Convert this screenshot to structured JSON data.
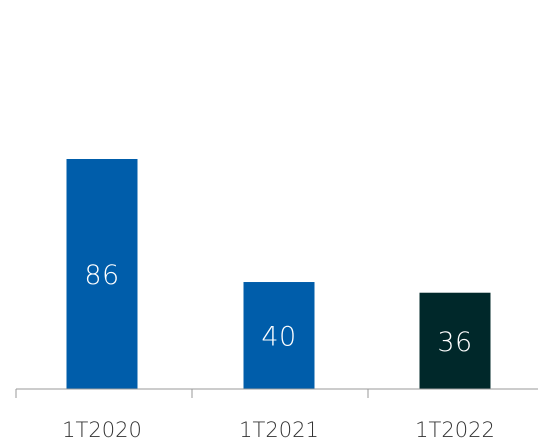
{
  "chart_data": {
    "type": "bar",
    "title": "",
    "xlabel": "",
    "ylabel": "",
    "categories": [
      "1T2020",
      "1T2021",
      "1T2022"
    ],
    "values": [
      86,
      40,
      36
    ],
    "data_labels": [
      "86",
      "40",
      "36"
    ],
    "colors": [
      "#005DAA",
      "#005DAA",
      "#00282A"
    ],
    "ylim": [
      0,
      86
    ],
    "grid": false,
    "legend": "none"
  }
}
